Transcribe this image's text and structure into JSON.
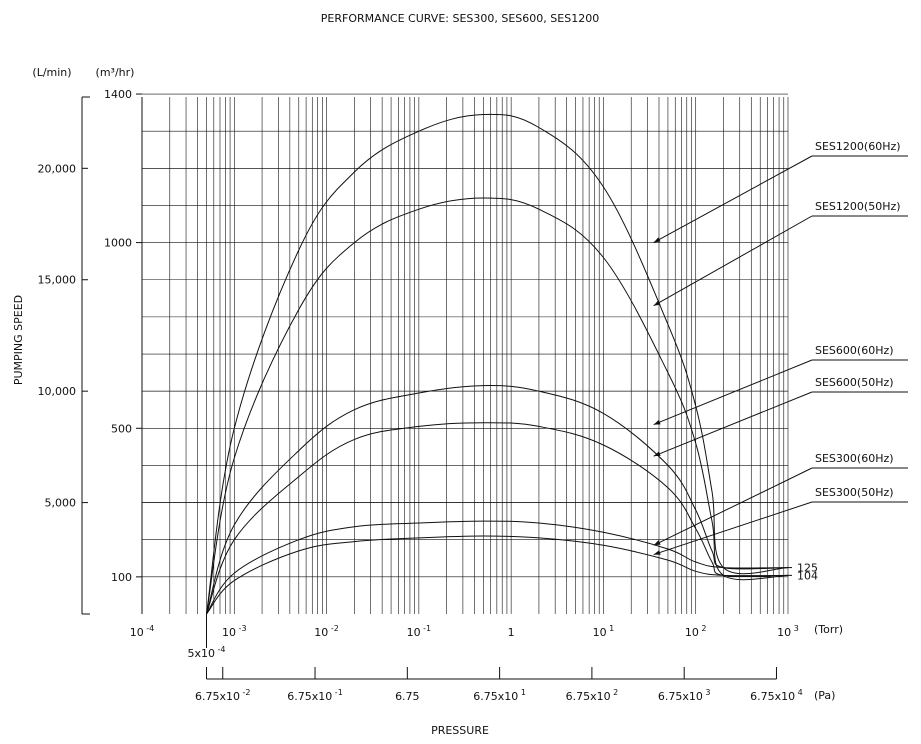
{
  "chart_data": {
    "type": "line",
    "title": "PERFORMANCE CURVE: SES300, SES600, SES1200",
    "ylabel": "PUMPING SPEED",
    "xlabel": "PRESSURE",
    "y_unit_outer": "(L/min)",
    "y_unit_inner": "(m³/hr)",
    "x_unit_torr": "(Torr)",
    "x_unit_pa": "(Pa)",
    "x_scale": "log",
    "xlim_torr": [
      0.0001,
      1000
    ],
    "ylim_m3hr": [
      0,
      1400
    ],
    "grid": true,
    "y_ticks_m3hr": [
      "1400",
      "1000",
      "500",
      "100"
    ],
    "y_ticks_lmin": [
      "20,000",
      "15,000",
      "10,000",
      "5,000"
    ],
    "x_ticks_torr": [
      {
        "base": "10",
        "exp": "-4"
      },
      {
        "base": "10",
        "exp": "-3"
      },
      {
        "base": "10",
        "exp": "-2"
      },
      {
        "base": "10",
        "exp": "-1"
      },
      {
        "base": "1",
        "exp": ""
      },
      {
        "base": "10",
        "exp": "1"
      },
      {
        "base": "10",
        "exp": "2"
      },
      {
        "base": "10",
        "exp": "3"
      }
    ],
    "x_start_label": {
      "base": "5x10",
      "exp": "-4"
    },
    "x_ticks_pa": [
      {
        "base": "6.75x10",
        "exp": "-2"
      },
      {
        "base": "6.75x10",
        "exp": "-1"
      },
      {
        "base": "6.75",
        "exp": ""
      },
      {
        "base": "6.75x10",
        "exp": "1"
      },
      {
        "base": "6.75x10",
        "exp": "2"
      },
      {
        "base": "6.75x10",
        "exp": "3"
      },
      {
        "base": "6.75x10",
        "exp": "4"
      }
    ],
    "right_values": [
      "125",
      "104"
    ],
    "series": [
      {
        "name": "SES1200(60Hz)",
        "points": [
          [
            0.0005,
            0
          ],
          [
            0.001,
            500
          ],
          [
            0.005,
            980
          ],
          [
            0.02,
            1190
          ],
          [
            0.1,
            1300
          ],
          [
            0.5,
            1345
          ],
          [
            2,
            1310
          ],
          [
            10,
            1150
          ],
          [
            50,
            780
          ],
          [
            100,
            560
          ],
          [
            150,
            330
          ],
          [
            200,
            125
          ],
          [
            1000,
            125
          ]
        ]
      },
      {
        "name": "SES1200(50Hz)",
        "points": [
          [
            0.0005,
            0
          ],
          [
            0.001,
            420
          ],
          [
            0.005,
            820
          ],
          [
            0.02,
            1000
          ],
          [
            0.1,
            1090
          ],
          [
            0.5,
            1120
          ],
          [
            2,
            1090
          ],
          [
            10,
            960
          ],
          [
            50,
            650
          ],
          [
            100,
            460
          ],
          [
            150,
            250
          ],
          [
            200,
            104
          ],
          [
            1000,
            104
          ]
        ]
      },
      {
        "name": "SES600(60Hz)",
        "points": [
          [
            0.0005,
            0
          ],
          [
            0.001,
            240
          ],
          [
            0.005,
            440
          ],
          [
            0.02,
            550
          ],
          [
            0.1,
            595
          ],
          [
            0.5,
            615
          ],
          [
            2,
            600
          ],
          [
            10,
            540
          ],
          [
            50,
            400
          ],
          [
            100,
            280
          ],
          [
            150,
            170
          ],
          [
            200,
            125
          ],
          [
            1000,
            125
          ]
        ]
      },
      {
        "name": "SES600(50Hz)",
        "points": [
          [
            0.0005,
            0
          ],
          [
            0.001,
            200
          ],
          [
            0.005,
            370
          ],
          [
            0.02,
            470
          ],
          [
            0.1,
            505
          ],
          [
            0.5,
            515
          ],
          [
            2,
            505
          ],
          [
            10,
            455
          ],
          [
            50,
            340
          ],
          [
            100,
            230
          ],
          [
            150,
            140
          ],
          [
            200,
            104
          ],
          [
            1000,
            104
          ]
        ]
      },
      {
        "name": "SES300(60Hz)",
        "points": [
          [
            0.0005,
            0
          ],
          [
            0.001,
            110
          ],
          [
            0.005,
            200
          ],
          [
            0.02,
            235
          ],
          [
            0.1,
            245
          ],
          [
            0.5,
            250
          ],
          [
            2,
            245
          ],
          [
            10,
            220
          ],
          [
            50,
            175
          ],
          [
            100,
            140
          ],
          [
            200,
            125
          ],
          [
            1000,
            125
          ]
        ]
      },
      {
        "name": "SES300(50Hz)",
        "points": [
          [
            0.0005,
            0
          ],
          [
            0.001,
            90
          ],
          [
            0.005,
            170
          ],
          [
            0.02,
            195
          ],
          [
            0.1,
            205
          ],
          [
            0.5,
            210
          ],
          [
            2,
            205
          ],
          [
            10,
            185
          ],
          [
            50,
            145
          ],
          [
            100,
            115
          ],
          [
            200,
            104
          ],
          [
            1000,
            104
          ]
        ]
      }
    ],
    "legend_labels": [
      {
        "name": "SES1200(60Hz)",
        "arrow_x_torr": 35,
        "arrow_y": 1000
      },
      {
        "name": "SES1200(50Hz)",
        "arrow_x_torr": 35,
        "arrow_y": 830
      },
      {
        "name": "SES600(60Hz)",
        "arrow_x_torr": 35,
        "arrow_y": 510
      },
      {
        "name": "SES600(50Hz)",
        "arrow_x_torr": 35,
        "arrow_y": 425
      },
      {
        "name": "SES300(60Hz)",
        "arrow_x_torr": 35,
        "arrow_y": 185
      },
      {
        "name": "SES300(50Hz)",
        "arrow_x_torr": 35,
        "arrow_y": 160
      }
    ]
  }
}
